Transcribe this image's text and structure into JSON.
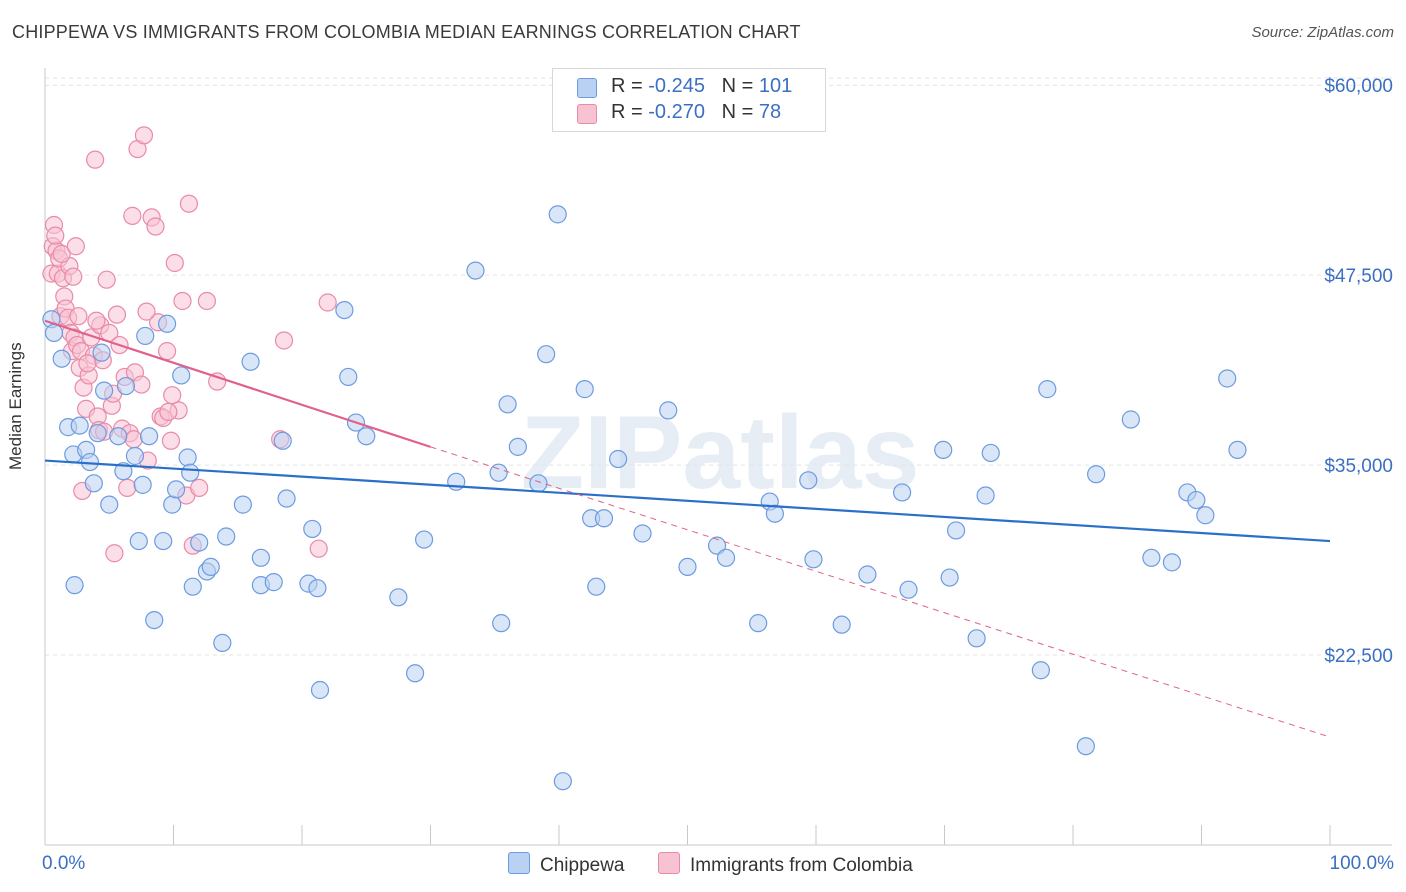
{
  "title": "CHIPPEWA VS IMMIGRANTS FROM COLOMBIA MEDIAN EARNINGS CORRELATION CHART",
  "source": "Source: ZipAtlas.com",
  "watermark": "ZIPatlas",
  "legend_top": [
    {
      "r_label": "R =",
      "r_value": "-0.245",
      "n_label": "N =",
      "n_value": "101"
    },
    {
      "r_label": "R =",
      "r_value": "-0.270",
      "n_label": "N =",
      "n_value": "78"
    }
  ],
  "bottom_legend": [
    "Chippewa",
    "Immigrants from Colombia"
  ],
  "colors": {
    "blue_fill": "#b9d2f3",
    "blue_stroke": "#6d9be0",
    "blue_line": "#2a6fc9",
    "pink_fill": "#f7c3d3",
    "pink_stroke": "#e98aa8",
    "pink_line": "#e0628c",
    "axis_text": "#3b6fc4"
  },
  "chart_data": {
    "type": "scatter",
    "title": "CHIPPEWA VS IMMIGRANTS FROM COLOMBIA MEDIAN EARNINGS CORRELATION CHART",
    "xlabel": "",
    "ylabel": "Median Earnings",
    "xlim": [
      0,
      100
    ],
    "ylim": [
      10000,
      61000
    ],
    "x_tick_labels": [
      "0.0%",
      "100.0%"
    ],
    "y_ticks": [
      22500,
      35000,
      47500,
      60000
    ],
    "y_tick_labels": [
      "$22,500",
      "$35,000",
      "$47,500",
      "$60,000"
    ],
    "grid": true,
    "series": [
      {
        "name": "Chippewa",
        "r": -0.245,
        "n": 101,
        "trend": {
          "x": [
            0,
            100
          ],
          "y": [
            35300,
            30000
          ]
        },
        "points": [
          [
            0.5,
            44600
          ],
          [
            0.7,
            43700
          ],
          [
            1.3,
            42000
          ],
          [
            1.8,
            37500
          ],
          [
            2.2,
            35700
          ],
          [
            2.3,
            27100
          ],
          [
            2.7,
            37600
          ],
          [
            3.2,
            36000
          ],
          [
            3.5,
            35200
          ],
          [
            3.8,
            33800
          ],
          [
            4.1,
            37100
          ],
          [
            4.4,
            42400
          ],
          [
            4.6,
            39900
          ],
          [
            5.0,
            32400
          ],
          [
            5.7,
            36900
          ],
          [
            6.1,
            34600
          ],
          [
            6.3,
            40200
          ],
          [
            7.0,
            35600
          ],
          [
            7.3,
            30000
          ],
          [
            7.6,
            33700
          ],
          [
            7.8,
            43500
          ],
          [
            8.1,
            36900
          ],
          [
            8.5,
            24800
          ],
          [
            9.2,
            30000
          ],
          [
            9.5,
            44300
          ],
          [
            9.9,
            32400
          ],
          [
            10.2,
            33400
          ],
          [
            10.6,
            40900
          ],
          [
            11.1,
            35500
          ],
          [
            11.3,
            34500
          ],
          [
            11.5,
            27000
          ],
          [
            12.0,
            29900
          ],
          [
            12.6,
            28000
          ],
          [
            12.9,
            28300
          ],
          [
            13.8,
            23300
          ],
          [
            14.1,
            30300
          ],
          [
            15.4,
            32400
          ],
          [
            16.0,
            41800
          ],
          [
            16.8,
            28900
          ],
          [
            16.8,
            27100
          ],
          [
            17.8,
            27300
          ],
          [
            18.5,
            36600
          ],
          [
            18.8,
            32800
          ],
          [
            20.5,
            27200
          ],
          [
            20.8,
            30800
          ],
          [
            21.2,
            26900
          ],
          [
            21.4,
            20200
          ],
          [
            23.3,
            45200
          ],
          [
            23.6,
            40800
          ],
          [
            24.2,
            37800
          ],
          [
            25.0,
            36900
          ],
          [
            27.5,
            26300
          ],
          [
            28.8,
            21300
          ],
          [
            29.5,
            30100
          ],
          [
            32.0,
            33900
          ],
          [
            33.5,
            47800
          ],
          [
            35.3,
            34500
          ],
          [
            35.5,
            24600
          ],
          [
            36.0,
            39000
          ],
          [
            36.8,
            36200
          ],
          [
            38.4,
            33800
          ],
          [
            39.0,
            42300
          ],
          [
            39.9,
            51500
          ],
          [
            40.3,
            14200
          ],
          [
            42.0,
            40000
          ],
          [
            42.5,
            31500
          ],
          [
            42.9,
            27000
          ],
          [
            43.5,
            31500
          ],
          [
            44.6,
            35400
          ],
          [
            46.5,
            30500
          ],
          [
            48.5,
            38600
          ],
          [
            50.0,
            28300
          ],
          [
            52.3,
            29700
          ],
          [
            53.0,
            28900
          ],
          [
            55.5,
            24600
          ],
          [
            56.4,
            32600
          ],
          [
            56.8,
            31800
          ],
          [
            59.4,
            34000
          ],
          [
            59.8,
            28800
          ],
          [
            62.0,
            24500
          ],
          [
            64.0,
            27800
          ],
          [
            66.7,
            33200
          ],
          [
            67.2,
            26800
          ],
          [
            69.9,
            36000
          ],
          [
            70.4,
            27600
          ],
          [
            70.9,
            30700
          ],
          [
            72.5,
            23600
          ],
          [
            73.2,
            33000
          ],
          [
            73.6,
            35800
          ],
          [
            77.5,
            21500
          ],
          [
            78.0,
            40000
          ],
          [
            81.0,
            16500
          ],
          [
            81.8,
            34400
          ],
          [
            84.5,
            38000
          ],
          [
            86.1,
            28900
          ],
          [
            87.7,
            28600
          ],
          [
            88.9,
            33200
          ],
          [
            89.6,
            32700
          ],
          [
            90.3,
            31700
          ],
          [
            92.0,
            40700
          ],
          [
            92.8,
            36000
          ]
        ]
      },
      {
        "name": "Immigrants from Colombia",
        "r": -0.27,
        "n": 78,
        "trend": {
          "x": [
            0,
            30
          ],
          "y": [
            44500,
            36200
          ]
        },
        "trend_dashed": {
          "x": [
            30,
            100
          ],
          "y": [
            36200,
            17100
          ]
        },
        "points": [
          [
            0.5,
            47600
          ],
          [
            0.6,
            49400
          ],
          [
            0.7,
            50800
          ],
          [
            0.9,
            49100
          ],
          [
            1.0,
            47600
          ],
          [
            1.1,
            48600
          ],
          [
            1.2,
            44800
          ],
          [
            1.4,
            47300
          ],
          [
            1.5,
            46100
          ],
          [
            1.6,
            45300
          ],
          [
            1.8,
            44700
          ],
          [
            1.9,
            48100
          ],
          [
            2.0,
            43700
          ],
          [
            2.1,
            42500
          ],
          [
            2.2,
            47400
          ],
          [
            2.3,
            43400
          ],
          [
            2.5,
            42900
          ],
          [
            2.6,
            44800
          ],
          [
            2.7,
            41400
          ],
          [
            2.8,
            42500
          ],
          [
            2.9,
            33300
          ],
          [
            3.0,
            40100
          ],
          [
            3.2,
            38700
          ],
          [
            3.4,
            40900
          ],
          [
            3.6,
            43400
          ],
          [
            3.8,
            42200
          ],
          [
            3.9,
            55100
          ],
          [
            4.1,
            38200
          ],
          [
            4.2,
            37300
          ],
          [
            4.3,
            44200
          ],
          [
            4.5,
            41900
          ],
          [
            4.6,
            37200
          ],
          [
            4.8,
            47200
          ],
          [
            5.0,
            43700
          ],
          [
            5.2,
            38900
          ],
          [
            5.4,
            29200
          ],
          [
            5.6,
            44900
          ],
          [
            5.8,
            42900
          ],
          [
            6.0,
            37400
          ],
          [
            6.2,
            40800
          ],
          [
            6.4,
            33500
          ],
          [
            6.6,
            37100
          ],
          [
            6.8,
            51400
          ],
          [
            7.0,
            41100
          ],
          [
            7.2,
            55800
          ],
          [
            7.5,
            40300
          ],
          [
            7.7,
            56700
          ],
          [
            8.0,
            35300
          ],
          [
            8.3,
            51300
          ],
          [
            8.6,
            50700
          ],
          [
            8.8,
            44400
          ],
          [
            9.0,
            38200
          ],
          [
            9.2,
            38100
          ],
          [
            9.5,
            42500
          ],
          [
            9.8,
            36600
          ],
          [
            10.1,
            48300
          ],
          [
            10.4,
            38600
          ],
          [
            10.7,
            45800
          ],
          [
            11.0,
            33000
          ],
          [
            11.2,
            52200
          ],
          [
            11.5,
            29700
          ],
          [
            12.0,
            33500
          ],
          [
            12.6,
            45800
          ],
          [
            13.4,
            40500
          ],
          [
            18.3,
            36700
          ],
          [
            18.6,
            43200
          ],
          [
            21.3,
            29500
          ],
          [
            22.0,
            45700
          ],
          [
            1.3,
            48900
          ],
          [
            2.4,
            49400
          ],
          [
            4.0,
            44500
          ],
          [
            6.9,
            36700
          ],
          [
            9.6,
            38500
          ],
          [
            3.3,
            41700
          ],
          [
            5.3,
            39700
          ],
          [
            7.9,
            45100
          ],
          [
            9.9,
            39600
          ],
          [
            0.8,
            50100
          ]
        ]
      }
    ]
  }
}
